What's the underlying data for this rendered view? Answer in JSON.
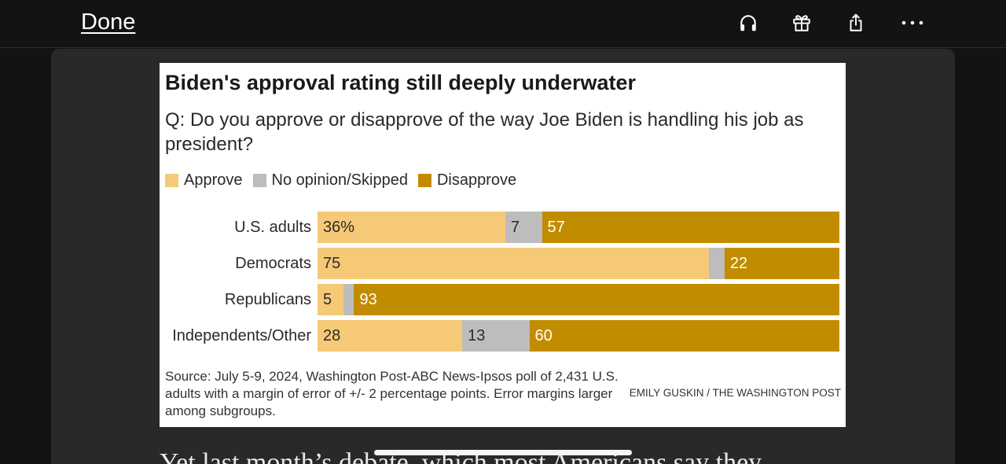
{
  "topbar": {
    "done_label": "Done",
    "icons": {
      "listen": "headphones-icon",
      "gift": "gift-icon",
      "share": "share-icon",
      "more": "more-horizontal-icon"
    }
  },
  "chart_data": {
    "type": "bar",
    "orientation": "horizontal",
    "stacked": true,
    "title": "Biden's approval rating still deeply underwater",
    "subtitle": "Q: Do you approve or disapprove of the way Joe Biden is handling his job as president?",
    "categories": [
      "U.S. adults",
      "Democrats",
      "Republicans",
      "Independents/Other"
    ],
    "series": [
      {
        "name": "Approve",
        "color": "#f6c976",
        "label_color": "#2b2b2b",
        "values": [
          36,
          75,
          5,
          28
        ],
        "labels": [
          "36%",
          "75",
          "5",
          "28"
        ]
      },
      {
        "name": "No opinion/Skipped",
        "color": "#bdbdbd",
        "label_color": "#2b2b2b",
        "values": [
          7,
          3,
          2,
          13
        ],
        "labels": [
          "7",
          null,
          null,
          "13"
        ]
      },
      {
        "name": "Disapprove",
        "color": "#c28c00",
        "label_color": "#ffffff",
        "values": [
          57,
          22,
          93,
          60
        ],
        "labels": [
          "57",
          "22",
          "93",
          "60"
        ]
      }
    ],
    "xlim": [
      0,
      100
    ],
    "grid": false,
    "legend": "top-left",
    "source": "Source: July 5-9, 2024, Washington Post-ABC News-Ipsos poll of 2,431 U.S. adults with a margin of error of +/- 2 percentage points. Error margins larger among subgroups.",
    "credit": "EMILY GUSKIN / THE WASHINGTON POST"
  },
  "article": {
    "text": "Yet last month’s debate, which most Americans say they"
  }
}
